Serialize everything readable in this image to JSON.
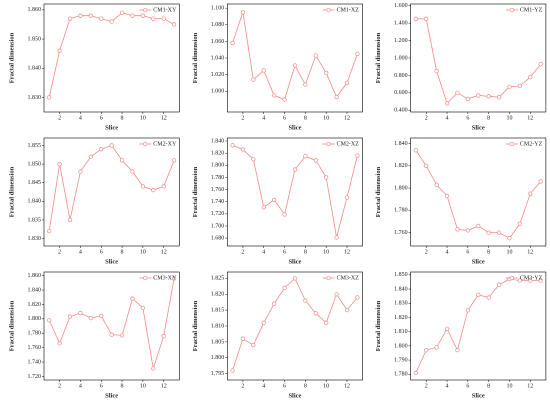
{
  "chart_data": [
    {
      "type": "line",
      "x_label": "Slice",
      "y_label": "Fractal dimension",
      "x": [
        1,
        2,
        3,
        4,
        5,
        6,
        7,
        8,
        9,
        10,
        11,
        12,
        13
      ],
      "xlim": [
        0.5,
        13.5
      ],
      "xticks": [
        2,
        4,
        6,
        8,
        10,
        12
      ],
      "ylim": [
        1.825,
        1.862
      ],
      "yticks": [
        {
          "value": 1.83,
          "label": "1.830"
        },
        {
          "value": 1.84,
          "label": "1.840"
        },
        {
          "value": 1.85,
          "label": "1.850"
        },
        {
          "value": 1.86,
          "label": "1.860"
        }
      ],
      "legend": "upper right",
      "series": [
        {
          "name": "CM1-XY",
          "color": "#f08a8a",
          "values": [
            1.83,
            1.846,
            1.857,
            1.858,
            1.858,
            1.857,
            1.856,
            1.859,
            1.858,
            1.858,
            1.857,
            1.857,
            1.855
          ]
        }
      ]
    },
    {
      "type": "line",
      "x_label": "Slice",
      "y_label": "Fractal dimension",
      "x": [
        1,
        2,
        3,
        4,
        5,
        6,
        7,
        8,
        9,
        10,
        11,
        12,
        13
      ],
      "xlim": [
        0.5,
        13.5
      ],
      "xticks": [
        2,
        4,
        6,
        8,
        10,
        12
      ],
      "ylim": [
        0.975,
        1.105
      ],
      "yticks": [
        {
          "value": 1.0,
          "label": "1.000"
        },
        {
          "value": 1.02,
          "label": "1.020"
        },
        {
          "value": 1.04,
          "label": "1.040"
        },
        {
          "value": 1.06,
          "label": "1.060"
        },
        {
          "value": 1.08,
          "label": "1.080"
        },
        {
          "value": 1.1,
          "label": "1.100"
        }
      ],
      "legend": "upper right",
      "series": [
        {
          "name": "CM1-XZ",
          "color": "#f08a8a",
          "values": [
            1.058,
            1.095,
            1.014,
            1.025,
            0.995,
            0.99,
            1.031,
            1.008,
            1.043,
            1.022,
            0.993,
            1.01,
            1.045
          ]
        }
      ]
    },
    {
      "type": "line",
      "x_label": "Slice",
      "y_label": "Fractal dimension",
      "x": [
        1,
        2,
        3,
        4,
        5,
        6,
        7,
        8,
        9,
        10,
        11,
        12,
        13
      ],
      "xlim": [
        0.5,
        13.5
      ],
      "xticks": [
        2,
        4,
        6,
        8,
        10,
        12
      ],
      "ylim": [
        0.38,
        1.62
      ],
      "yticks": [
        {
          "value": 0.4,
          "label": "0.400"
        },
        {
          "value": 0.6,
          "label": "0.600"
        },
        {
          "value": 0.8,
          "label": "0.800"
        },
        {
          "value": 1.0,
          "label": "1.000"
        },
        {
          "value": 1.2,
          "label": "1.200"
        },
        {
          "value": 1.4,
          "label": "1.400"
        },
        {
          "value": 1.6,
          "label": "1.600"
        }
      ],
      "legend": "upper right",
      "series": [
        {
          "name": "CM1-YZ",
          "color": "#f08a8a",
          "values": [
            1.45,
            1.45,
            0.85,
            0.48,
            0.6,
            0.53,
            0.57,
            0.56,
            0.55,
            0.67,
            0.68,
            0.78,
            0.93
          ]
        }
      ]
    },
    {
      "type": "line",
      "x_label": "Slice",
      "y_label": "Fractal dimension",
      "x": [
        1,
        2,
        3,
        4,
        5,
        6,
        7,
        8,
        9,
        10,
        11,
        12,
        13
      ],
      "xlim": [
        0.5,
        13.5
      ],
      "xticks": [
        2,
        4,
        6,
        8,
        10,
        12
      ],
      "ylim": [
        1.828,
        1.857
      ],
      "yticks": [
        {
          "value": 1.83,
          "label": "1.830"
        },
        {
          "value": 1.835,
          "label": "1.835"
        },
        {
          "value": 1.84,
          "label": "1.840"
        },
        {
          "value": 1.845,
          "label": "1.845"
        },
        {
          "value": 1.85,
          "label": "1.850"
        },
        {
          "value": 1.855,
          "label": "1.855"
        }
      ],
      "legend": "upper right",
      "series": [
        {
          "name": "CM2-XY",
          "color": "#f08a8a",
          "values": [
            1.832,
            1.85,
            1.835,
            1.848,
            1.852,
            1.854,
            1.855,
            1.851,
            1.848,
            1.844,
            1.843,
            1.844,
            1.851
          ]
        }
      ]
    },
    {
      "type": "line",
      "x_label": "Slice",
      "y_label": "Fractal dimension",
      "x": [
        1,
        2,
        3,
        4,
        5,
        6,
        7,
        8,
        9,
        10,
        11,
        12,
        13
      ],
      "xlim": [
        0.5,
        13.5
      ],
      "xticks": [
        2,
        4,
        6,
        8,
        10,
        12
      ],
      "ylim": [
        1.667,
        1.845
      ],
      "yticks": [
        {
          "value": 1.68,
          "label": "1.680"
        },
        {
          "value": 1.7,
          "label": "1.700"
        },
        {
          "value": 1.72,
          "label": "1.720"
        },
        {
          "value": 1.74,
          "label": "1.740"
        },
        {
          "value": 1.76,
          "label": "1.760"
        },
        {
          "value": 1.78,
          "label": "1.780"
        },
        {
          "value": 1.8,
          "label": "1.800"
        },
        {
          "value": 1.82,
          "label": "1.820"
        },
        {
          "value": 1.84,
          "label": "1.840"
        }
      ],
      "legend": "upper right",
      "series": [
        {
          "name": "CM2-XZ",
          "color": "#f08a8a",
          "values": [
            1.833,
            1.826,
            1.81,
            1.731,
            1.743,
            1.719,
            1.793,
            1.815,
            1.808,
            1.78,
            1.681,
            1.747,
            1.816
          ]
        }
      ]
    },
    {
      "type": "line",
      "x_label": "Slice",
      "y_label": "Fractal dimension",
      "x": [
        1,
        2,
        3,
        4,
        5,
        6,
        7,
        8,
        9,
        10,
        11,
        12,
        13
      ],
      "xlim": [
        0.5,
        13.5
      ],
      "xticks": [
        2,
        4,
        6,
        8,
        10,
        12
      ],
      "ylim": [
        1.748,
        1.845
      ],
      "yticks": [
        {
          "value": 1.76,
          "label": "1.760"
        },
        {
          "value": 1.78,
          "label": "1.780"
        },
        {
          "value": 1.8,
          "label": "1.800"
        },
        {
          "value": 1.82,
          "label": "1.820"
        },
        {
          "value": 1.84,
          "label": "1.840"
        }
      ],
      "legend": "upper right",
      "series": [
        {
          "name": "CM2-YZ",
          "color": "#f08a8a",
          "values": [
            1.834,
            1.82,
            1.803,
            1.793,
            1.763,
            1.762,
            1.766,
            1.76,
            1.76,
            1.755,
            1.768,
            1.795,
            1.806
          ]
        }
      ]
    },
    {
      "type": "line",
      "x_label": "Slice",
      "y_label": "Fractal dimension",
      "x": [
        1,
        2,
        3,
        4,
        5,
        6,
        7,
        8,
        9,
        10,
        11,
        12,
        13
      ],
      "xlim": [
        0.5,
        13.5
      ],
      "xticks": [
        2,
        4,
        6,
        8,
        10,
        12
      ],
      "ylim": [
        1.715,
        1.865
      ],
      "yticks": [
        {
          "value": 1.72,
          "label": "1.720"
        },
        {
          "value": 1.74,
          "label": "1.740"
        },
        {
          "value": 1.76,
          "label": "1.760"
        },
        {
          "value": 1.78,
          "label": "1.780"
        },
        {
          "value": 1.8,
          "label": "1.800"
        },
        {
          "value": 1.82,
          "label": "1.820"
        },
        {
          "value": 1.84,
          "label": "1.840"
        },
        {
          "value": 1.86,
          "label": "1.860"
        }
      ],
      "legend": "upper right",
      "series": [
        {
          "name": "CM3-XY",
          "color": "#f08a8a",
          "values": [
            1.798,
            1.766,
            1.803,
            1.808,
            1.801,
            1.804,
            1.778,
            1.777,
            1.828,
            1.815,
            1.731,
            1.776,
            1.856
          ]
        }
      ]
    },
    {
      "type": "line",
      "x_label": "Slice",
      "y_label": "Fractal dimension",
      "x": [
        1,
        2,
        3,
        4,
        5,
        6,
        7,
        8,
        9,
        10,
        11,
        12,
        13
      ],
      "xlim": [
        0.5,
        13.5
      ],
      "xticks": [
        2,
        4,
        6,
        8,
        10,
        12
      ],
      "ylim": [
        1.793,
        1.827
      ],
      "yticks": [
        {
          "value": 1.795,
          "label": "1.795"
        },
        {
          "value": 1.8,
          "label": "1.800"
        },
        {
          "value": 1.805,
          "label": "1.805"
        },
        {
          "value": 1.81,
          "label": "1.810"
        },
        {
          "value": 1.815,
          "label": "1.815"
        },
        {
          "value": 1.82,
          "label": "1.820"
        },
        {
          "value": 1.825,
          "label": "1.825"
        }
      ],
      "legend": "upper right",
      "series": [
        {
          "name": "CM3-XZ",
          "color": "#f08a8a",
          "values": [
            1.796,
            1.806,
            1.804,
            1.811,
            1.817,
            1.822,
            1.825,
            1.818,
            1.814,
            1.811,
            1.82,
            1.815,
            1.819
          ]
        }
      ]
    },
    {
      "type": "line",
      "x_label": "Slice",
      "y_label": "Fractal dimension",
      "x": [
        1,
        2,
        3,
        4,
        5,
        6,
        7,
        8,
        9,
        10,
        11,
        12,
        13
      ],
      "xlim": [
        0.5,
        13.5
      ],
      "xticks": [
        2,
        4,
        6,
        8,
        10,
        12
      ],
      "ylim": [
        1.776,
        1.852
      ],
      "yticks": [
        {
          "value": 1.78,
          "label": "1.780"
        },
        {
          "value": 1.79,
          "label": "1.790"
        },
        {
          "value": 1.8,
          "label": "1.800"
        },
        {
          "value": 1.81,
          "label": "1.810"
        },
        {
          "value": 1.82,
          "label": "1.820"
        },
        {
          "value": 1.83,
          "label": "1.830"
        },
        {
          "value": 1.84,
          "label": "1.840"
        },
        {
          "value": 1.85,
          "label": "1.850"
        }
      ],
      "legend": "upper right",
      "series": [
        {
          "name": "CM3-YZ",
          "color": "#f08a8a",
          "values": [
            1.781,
            1.797,
            1.799,
            1.812,
            1.797,
            1.825,
            1.836,
            1.834,
            1.843,
            1.847,
            1.846,
            1.846,
            1.846
          ]
        }
      ]
    }
  ]
}
